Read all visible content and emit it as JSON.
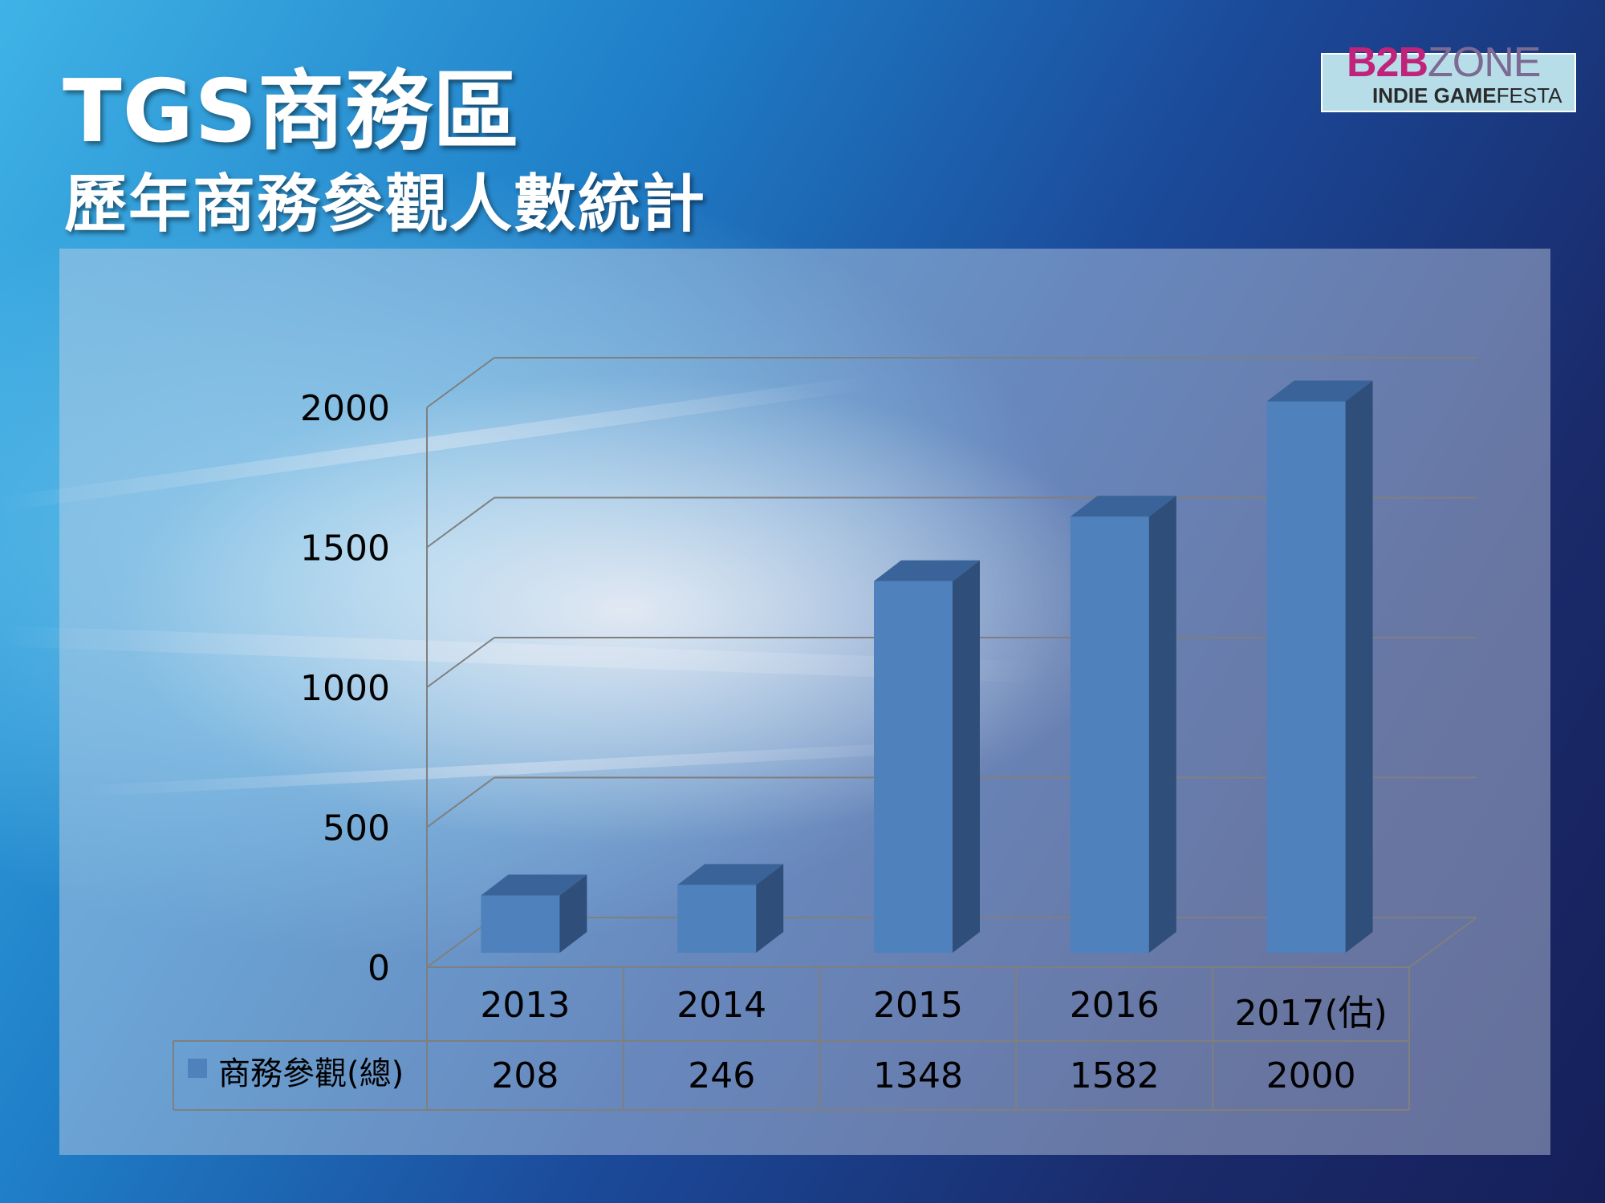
{
  "title": "TGS商務區",
  "subtitle": "歷年商務參觀人數統計",
  "logo": {
    "b2b": "B2B",
    "zone": "ZONE",
    "indie_game": "INDIE GAME",
    "festa": "FESTA"
  },
  "colors": {
    "bar_front": "#4f81bd",
    "bar_side": "#2f4f7a",
    "bar_top": "#3a6499",
    "gridline": "#7f7f7f"
  },
  "chart_data": {
    "type": "bar",
    "categories": [
      "2013",
      "2014",
      "2015",
      "2016",
      "2017(估)"
    ],
    "series": [
      {
        "name": "商務參觀(總)",
        "values": [
          208,
          246,
          1348,
          1582,
          2000
        ]
      }
    ],
    "value_labels": [
      "208",
      "246",
      "1348",
      "1582",
      "2000"
    ],
    "y_ticks": [
      "0",
      "500",
      "1000",
      "1500",
      "2000"
    ],
    "ylim": [
      0,
      2000
    ],
    "grid": true,
    "legend_placement": "bottom-table",
    "style": "3d-column"
  }
}
